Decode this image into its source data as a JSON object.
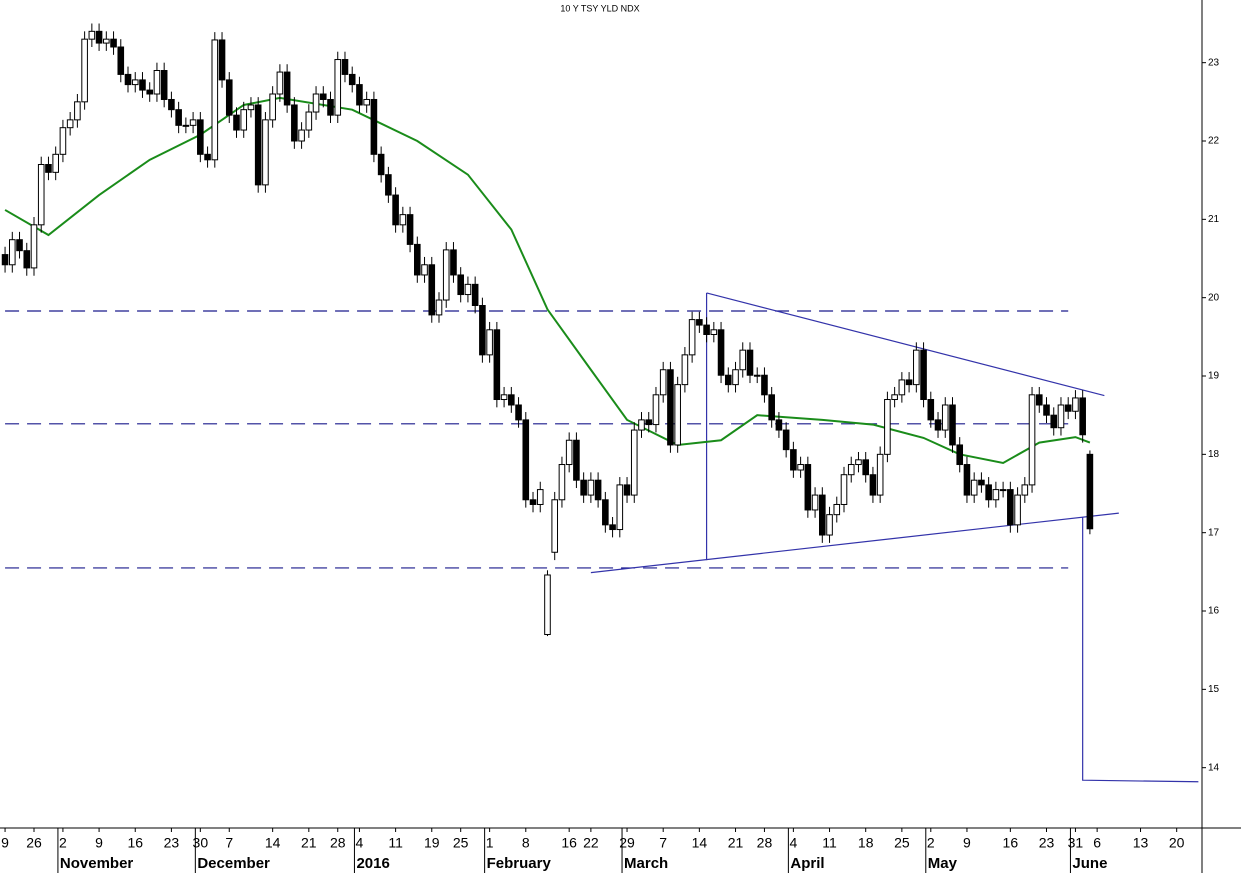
{
  "chart_data": {
    "type": "candlestick",
    "title": "10 Y TSY YLD NDX",
    "xlim": [
      -0.7,
      165.5
    ],
    "ylim": [
      13.23,
      23.8
    ],
    "yticks": [
      14,
      15,
      16,
      17,
      18,
      19,
      20,
      21,
      22,
      23
    ],
    "xticks": [
      {
        "value": 0,
        "label": "9"
      },
      {
        "value": 4,
        "label": "26"
      },
      {
        "value": 8,
        "label": "2"
      },
      {
        "value": 13,
        "label": "9"
      },
      {
        "value": 18,
        "label": "16"
      },
      {
        "value": 23,
        "label": "23"
      },
      {
        "value": 27,
        "label": "30"
      },
      {
        "value": 31,
        "label": "7"
      },
      {
        "value": 37,
        "label": "14"
      },
      {
        "value": 42,
        "label": "21"
      },
      {
        "value": 46,
        "label": "28"
      },
      {
        "value": 49,
        "label": "4"
      },
      {
        "value": 54,
        "label": "11"
      },
      {
        "value": 59,
        "label": "19"
      },
      {
        "value": 63,
        "label": "25"
      },
      {
        "value": 67,
        "label": "1"
      },
      {
        "value": 72,
        "label": "8"
      },
      {
        "value": 78,
        "label": "16"
      },
      {
        "value": 81,
        "label": "22"
      },
      {
        "value": 86,
        "label": "29"
      },
      {
        "value": 91,
        "label": "7"
      },
      {
        "value": 96,
        "label": "14"
      },
      {
        "value": 101,
        "label": "21"
      },
      {
        "value": 105,
        "label": "28"
      },
      {
        "value": 109,
        "label": "4"
      },
      {
        "value": 114,
        "label": "11"
      },
      {
        "value": 119,
        "label": "18"
      },
      {
        "value": 124,
        "label": "25"
      },
      {
        "value": 128,
        "label": "2"
      },
      {
        "value": 133,
        "label": "9"
      },
      {
        "value": 139,
        "label": "16"
      },
      {
        "value": 144,
        "label": "23"
      },
      {
        "value": 148,
        "label": "31"
      },
      {
        "value": 151,
        "label": "6"
      },
      {
        "value": 157,
        "label": "13"
      },
      {
        "value": 162,
        "label": "20"
      }
    ],
    "month_labels": [
      {
        "value": 8,
        "label": "November"
      },
      {
        "value": 27,
        "label": "December"
      },
      {
        "value": 49,
        "label": "2016"
      },
      {
        "value": 67,
        "label": "February"
      },
      {
        "value": 86,
        "label": "March"
      },
      {
        "value": 109,
        "label": "April"
      },
      {
        "value": 128,
        "label": "May"
      },
      {
        "value": 148,
        "label": "June"
      }
    ],
    "open": [
      20.55,
      20.42,
      20.74,
      20.6,
      20.38,
      20.93,
      21.7,
      21.6,
      21.83,
      22.17,
      22.27,
      22.5,
      23.3,
      23.4,
      23.25,
      23.3,
      23.2,
      22.85,
      22.72,
      22.78,
      22.65,
      22.6,
      22.9,
      22.53,
      22.4,
      22.2,
      22.2,
      22.27,
      21.83,
      21.76,
      23.29,
      22.78,
      22.33,
      22.14,
      22.4,
      22.46,
      21.44,
      22.27,
      22.6,
      22.88,
      22.46,
      22.0,
      22.14,
      22.37,
      22.6,
      22.53,
      22.33,
      23.04,
      22.85,
      22.72,
      22.46,
      22.53,
      21.83,
      21.57,
      21.31,
      20.93,
      21.06,
      20.68,
      20.29,
      20.42,
      19.78,
      19.97,
      20.61,
      20.29,
      20.04,
      20.17,
      19.9,
      19.27,
      19.59,
      18.7,
      18.76,
      18.63,
      18.44,
      17.42,
      17.36,
      15.7,
      16.75,
      17.42,
      17.87,
      18.18,
      17.67,
      17.48,
      17.67,
      17.42,
      17.1,
      17.04,
      17.61,
      17.48,
      18.31,
      18.44,
      18.38,
      18.76,
      19.08,
      18.12,
      18.89,
      19.27,
      19.72,
      19.65,
      19.53,
      19.59,
      19.01,
      18.89,
      19.08,
      19.33,
      19.01,
      19.01,
      18.76,
      18.44,
      18.31,
      18.06,
      17.8,
      17.87,
      17.29,
      17.48,
      16.97,
      17.23,
      17.36,
      17.74,
      17.87,
      17.93,
      17.74,
      17.48,
      18.0,
      18.7,
      18.76,
      18.95,
      18.89,
      19.33,
      18.7,
      18.44,
      18.31,
      18.63,
      18.12,
      17.87,
      17.48,
      17.67,
      17.61,
      17.42,
      17.55,
      17.55,
      17.1,
      17.48,
      17.61,
      18.76,
      18.63,
      18.5,
      18.34,
      18.63,
      18.55,
      18.72,
      18.0
    ],
    "high": [
      20.65,
      20.84,
      20.84,
      20.7,
      21.03,
      21.8,
      21.8,
      21.93,
      22.27,
      22.37,
      22.6,
      23.4,
      23.5,
      23.5,
      23.4,
      23.4,
      23.3,
      22.95,
      22.88,
      22.88,
      22.75,
      23.0,
      23.0,
      22.63,
      22.5,
      22.3,
      22.37,
      22.37,
      21.93,
      23.39,
      23.39,
      22.88,
      22.43,
      22.5,
      22.56,
      22.56,
      22.37,
      22.7,
      22.98,
      22.98,
      22.56,
      22.24,
      22.47,
      22.7,
      22.7,
      22.63,
      23.14,
      23.14,
      22.95,
      22.82,
      22.63,
      22.63,
      21.93,
      21.67,
      21.41,
      21.16,
      21.16,
      20.78,
      20.52,
      20.52,
      20.07,
      20.71,
      20.71,
      20.39,
      20.27,
      20.27,
      20.0,
      19.69,
      19.69,
      18.86,
      18.86,
      18.73,
      18.54,
      17.52,
      17.65,
      16.52,
      17.52,
      17.97,
      18.28,
      18.28,
      17.77,
      17.77,
      17.77,
      17.52,
      17.2,
      17.71,
      17.71,
      18.41,
      18.54,
      18.54,
      18.86,
      19.18,
      19.18,
      18.99,
      19.37,
      19.82,
      19.82,
      19.75,
      19.69,
      19.69,
      19.11,
      19.18,
      19.43,
      19.43,
      19.11,
      19.11,
      18.86,
      18.54,
      18.41,
      18.16,
      17.97,
      17.97,
      17.58,
      17.58,
      17.33,
      17.46,
      17.84,
      17.97,
      18.03,
      18.03,
      17.84,
      18.1,
      18.8,
      18.86,
      19.05,
      19.05,
      19.43,
      19.43,
      18.8,
      18.54,
      18.73,
      18.73,
      18.22,
      17.97,
      17.77,
      17.77,
      17.71,
      17.65,
      17.65,
      17.65,
      17.58,
      17.71,
      18.86,
      18.86,
      18.73,
      18.6,
      18.73,
      18.73,
      18.82,
      18.82,
      18.05
    ],
    "low": [
      20.32,
      20.32,
      20.5,
      20.28,
      20.28,
      20.83,
      21.5,
      21.5,
      21.73,
      22.07,
      22.17,
      22.4,
      23.2,
      23.15,
      23.15,
      23.1,
      22.75,
      22.62,
      22.62,
      22.55,
      22.5,
      22.5,
      22.43,
      22.3,
      22.1,
      22.1,
      22.1,
      21.73,
      21.66,
      21.66,
      22.68,
      22.23,
      22.04,
      22.04,
      22.3,
      21.34,
      21.34,
      22.17,
      22.5,
      22.36,
      21.9,
      21.9,
      22.04,
      22.27,
      22.43,
      22.23,
      22.23,
      22.75,
      22.62,
      22.36,
      22.36,
      21.73,
      21.47,
      21.21,
      20.83,
      20.83,
      20.58,
      20.19,
      20.19,
      19.68,
      19.68,
      19.87,
      20.19,
      19.94,
      19.94,
      19.8,
      19.17,
      19.17,
      18.6,
      18.6,
      18.53,
      18.34,
      17.32,
      17.26,
      17.26,
      15.68,
      16.65,
      17.32,
      17.77,
      17.57,
      17.38,
      17.38,
      17.32,
      17.0,
      16.94,
      16.94,
      17.38,
      17.38,
      18.21,
      18.28,
      18.28,
      18.66,
      18.02,
      18.02,
      18.79,
      19.17,
      19.55,
      19.43,
      19.43,
      18.91,
      18.79,
      18.79,
      18.98,
      18.91,
      18.91,
      18.66,
      18.34,
      18.21,
      17.96,
      17.7,
      17.7,
      17.19,
      17.19,
      16.87,
      16.87,
      17.13,
      17.26,
      17.64,
      17.77,
      17.64,
      17.38,
      17.38,
      17.9,
      18.6,
      18.66,
      18.79,
      18.79,
      18.6,
      18.34,
      18.21,
      18.21,
      18.02,
      17.77,
      17.38,
      17.38,
      17.51,
      17.32,
      17.32,
      17.45,
      17.0,
      17.0,
      17.38,
      17.51,
      18.53,
      18.4,
      18.24,
      18.24,
      18.45,
      18.45,
      18.15,
      16.98
    ],
    "close": [
      20.42,
      20.74,
      20.6,
      20.38,
      20.93,
      21.7,
      21.6,
      21.83,
      22.17,
      22.27,
      22.5,
      23.3,
      23.4,
      23.25,
      23.3,
      23.2,
      22.85,
      22.72,
      22.78,
      22.65,
      22.6,
      22.9,
      22.53,
      22.4,
      22.2,
      22.2,
      22.27,
      21.83,
      21.76,
      23.29,
      22.78,
      22.33,
      22.14,
      22.4,
      22.46,
      21.44,
      22.27,
      22.6,
      22.88,
      22.46,
      22.0,
      22.14,
      22.37,
      22.6,
      22.53,
      22.33,
      23.04,
      22.85,
      22.72,
      22.46,
      22.53,
      21.83,
      21.57,
      21.31,
      20.93,
      21.06,
      20.68,
      20.29,
      20.42,
      19.78,
      19.97,
      20.61,
      20.29,
      20.04,
      20.17,
      19.9,
      19.27,
      19.59,
      18.7,
      18.76,
      18.63,
      18.44,
      17.42,
      17.36,
      17.55,
      16.46,
      17.42,
      17.87,
      18.18,
      17.67,
      17.48,
      17.67,
      17.42,
      17.1,
      17.04,
      17.61,
      17.48,
      18.31,
      18.44,
      18.38,
      18.76,
      19.08,
      18.12,
      18.89,
      19.27,
      19.72,
      19.65,
      19.53,
      19.59,
      19.01,
      18.89,
      19.08,
      19.33,
      19.01,
      19.01,
      18.76,
      18.44,
      18.31,
      18.06,
      17.8,
      17.87,
      17.29,
      17.48,
      16.97,
      17.23,
      17.36,
      17.74,
      17.87,
      17.93,
      17.74,
      17.48,
      18.0,
      18.7,
      18.76,
      18.95,
      18.89,
      19.33,
      18.7,
      18.44,
      18.31,
      18.63,
      18.12,
      17.87,
      17.48,
      17.67,
      17.61,
      17.42,
      17.55,
      17.55,
      17.1,
      17.48,
      17.61,
      18.76,
      18.63,
      18.5,
      18.34,
      18.63,
      18.55,
      18.72,
      18.25,
      17.05
    ],
    "up_color": "#ffffff",
    "down_color": "#000000",
    "moving_average": {
      "color": "#1a8c1a",
      "x": [
        0,
        6,
        13,
        20,
        27,
        33,
        38,
        48,
        57,
        64,
        70,
        75,
        81,
        86,
        93,
        99,
        104,
        113,
        120,
        127,
        132,
        138,
        143,
        148,
        150
      ],
      "values": [
        21.12,
        20.8,
        21.31,
        21.76,
        22.08,
        22.46,
        22.55,
        22.4,
        22.0,
        21.57,
        20.87,
        19.85,
        19.08,
        18.44,
        18.12,
        18.18,
        18.5,
        18.44,
        18.38,
        18.21,
        18.0,
        17.89,
        18.15,
        18.22,
        18.15
      ]
    },
    "lines": [
      {
        "color": "#1a1a8c",
        "dashed": true,
        "x": [
          0,
          147
        ],
        "values": [
          19.83,
          19.83
        ]
      },
      {
        "color": "#1a1a8c",
        "dashed": true,
        "x": [
          0,
          147
        ],
        "values": [
          18.39,
          18.39
        ]
      },
      {
        "color": "#1a1a8c",
        "dashed": true,
        "x": [
          0,
          147
        ],
        "values": [
          16.55,
          16.55
        ]
      },
      {
        "color": "#3333aa",
        "dashed": false,
        "x": [
          97,
          152
        ],
        "values": [
          20.06,
          18.75
        ]
      },
      {
        "color": "#3333aa",
        "dashed": false,
        "x": [
          81,
          154
        ],
        "values": [
          16.49,
          17.25
        ]
      },
      {
        "color": "#3333aa",
        "dashed": false,
        "x": [
          97,
          97
        ],
        "values": [
          20.06,
          16.65
        ]
      },
      {
        "color": "#3333aa",
        "dashed": false,
        "x": [
          149,
          149,
          165
        ],
        "values": [
          17.2,
          13.84,
          13.82
        ]
      }
    ]
  }
}
